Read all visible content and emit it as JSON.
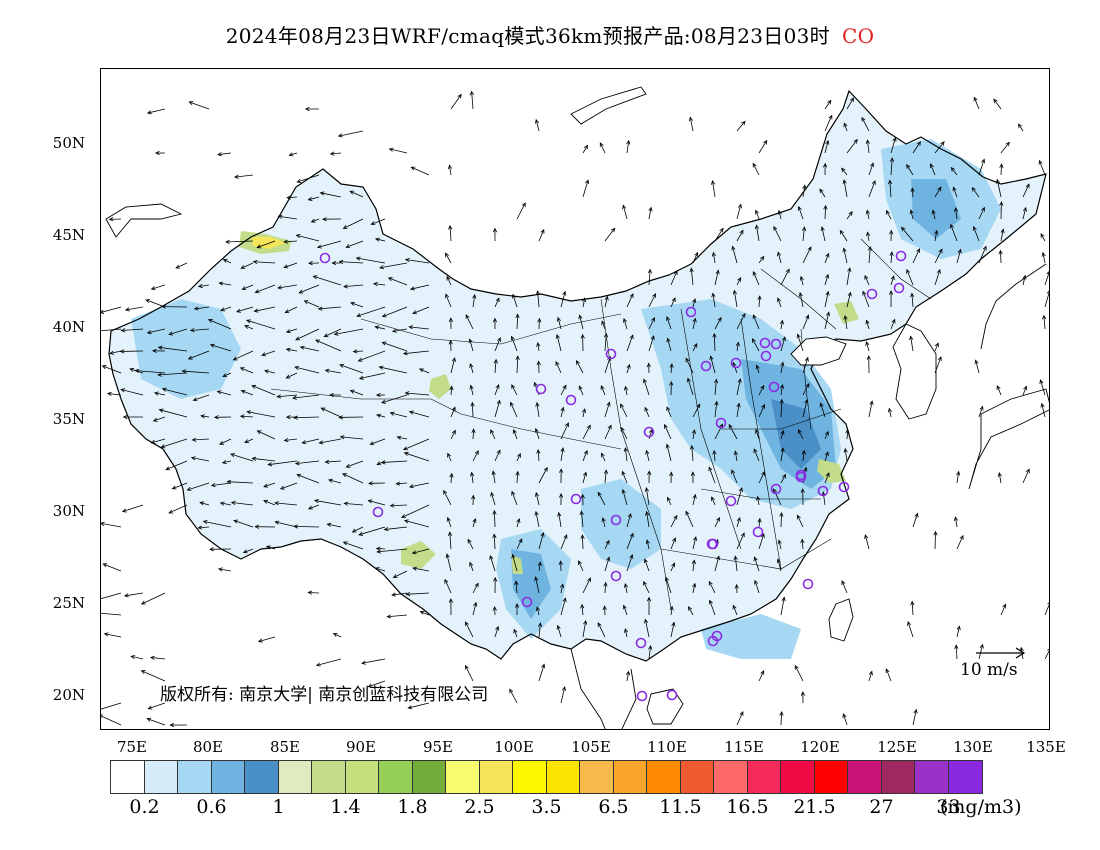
{
  "title": {
    "main": "2024年08月23日WRF/cmaq模式36km预报产品:08月23日03时",
    "species": "CO"
  },
  "axes": {
    "lat_labels": [
      "50N",
      "45N",
      "40N",
      "35N",
      "30N",
      "25N",
      "20N"
    ],
    "lon_labels": [
      "75E",
      "80E",
      "85E",
      "90E",
      "95E",
      "100E",
      "105E",
      "110E",
      "115E",
      "120E",
      "125E",
      "130E",
      "135E"
    ]
  },
  "colorbar": {
    "colors": [
      "#ffffff",
      "#d6ecfa",
      "#a6d8f4",
      "#6fb3e0",
      "#4a8fc6",
      "#e0ecc0",
      "#c2dc8a",
      "#c5e07c",
      "#96cf55",
      "#74ad3a",
      "#f6fb70",
      "#f3e45a",
      "#fdf700",
      "#fae400",
      "#f6b94a",
      "#f9a42a",
      "#fd8a00",
      "#ef5a2e",
      "#fe6a6a",
      "#f42a5a",
      "#f00a46",
      "#fe0000",
      "#c81478",
      "#a02860",
      "#9a32c8",
      "#8a2ae0"
    ],
    "labels": [
      "0.2",
      "0.6",
      "1",
      "1.4",
      "1.8",
      "2.5",
      "3.5",
      "6.5",
      "11.5",
      "16.5",
      "21.5",
      "27",
      "33"
    ],
    "unit": "(mg/m3)"
  },
  "reference_vector": "10 m/s",
  "copyright": "版权所有: 南京大学| 南京创蓝科技有限公司",
  "stations_icon": "purple-circle-icon",
  "map": {
    "lon_range": [
      73,
      135
    ],
    "lat_range": [
      18,
      54
    ]
  }
}
